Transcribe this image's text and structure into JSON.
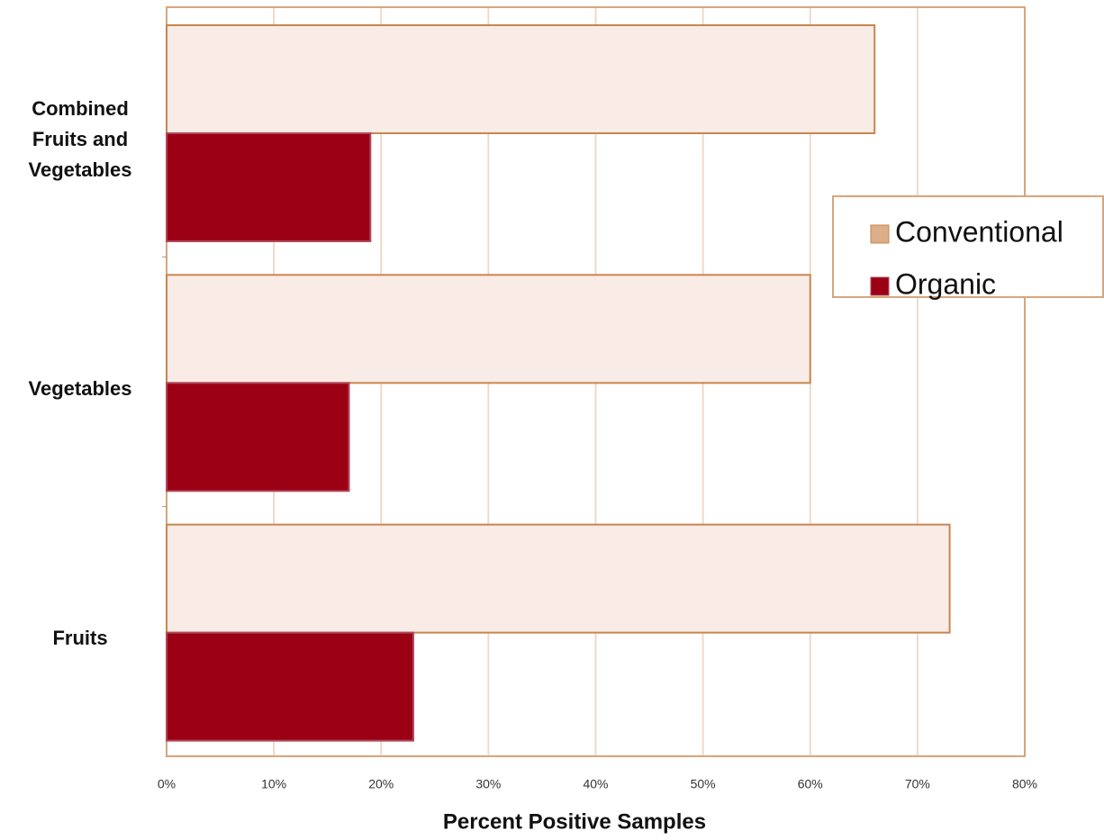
{
  "chart_data": {
    "type": "hbar",
    "categories": [
      "Combined Fruits and Vegetables",
      "Vegetables",
      "Fruits"
    ],
    "series": [
      {
        "name": "Conventional",
        "color": "#f9ece6",
        "values": [
          66,
          60,
          73
        ]
      },
      {
        "name": "Organic",
        "color": "#9b0015",
        "values": [
          19,
          17,
          23
        ]
      }
    ],
    "xlabel": "Percent Positive Samples",
    "xlim": [
      0,
      80
    ],
    "xticks": [
      {
        "value": 0,
        "label": "0%"
      },
      {
        "value": 10,
        "label": "10%"
      },
      {
        "value": 20,
        "label": "20%"
      },
      {
        "value": 30,
        "label": "30%"
      },
      {
        "value": 40,
        "label": "40%"
      },
      {
        "value": 50,
        "label": "50%"
      },
      {
        "value": 60,
        "label": "60%"
      },
      {
        "value": 70,
        "label": "70%"
      },
      {
        "value": 80,
        "label": "80%"
      }
    ],
    "grid": true,
    "legend": "right"
  }
}
